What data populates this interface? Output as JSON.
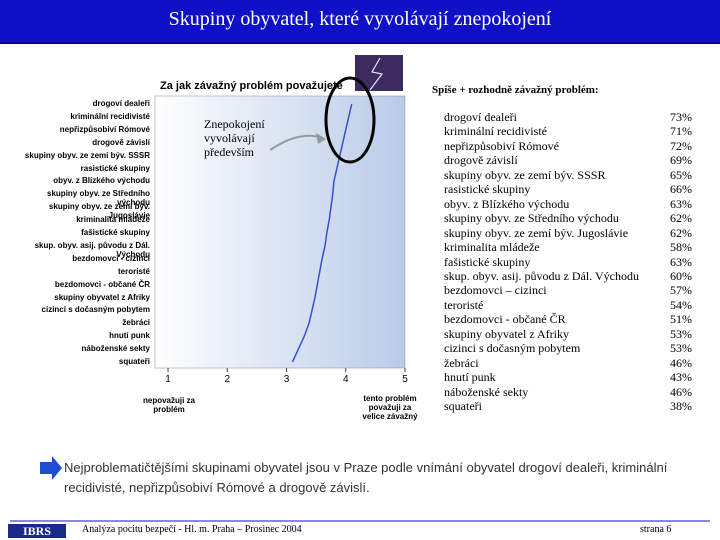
{
  "header": {
    "title": "Skupiny obyvatel, které vyvolávají znepokojení"
  },
  "chart_data": {
    "type": "line",
    "title": "Za jak závažný problém považujete",
    "categories": [
      "drogoví dealeři",
      "kriminální recidivisté",
      "nepřizpůsobiví Rómové",
      "drogově závislí",
      "skupiny obyv. ze zemí býv. SSSR",
      "rasistické skupiny",
      "obyv. z Blízkého východu",
      "skupiny obyv. ze Středního východu",
      "skupiny obyv. ze zemí býv. Jugoslávie",
      "kriminalita mládeže",
      "fašistické skupiny",
      "skup. obyv. asij. původu z Dál. Východu",
      "bezdomovci - cizinci",
      "teroristé",
      "bezdomovci - občané ČR",
      "skupiny obyvatel z Afriky",
      "cizinci s dočasným pobytem",
      "žebráci",
      "hnutí punk",
      "náboženské sekty",
      "squateři"
    ],
    "values": [
      4.1,
      4.05,
      4.0,
      3.95,
      3.9,
      3.85,
      3.8,
      3.78,
      3.75,
      3.72,
      3.68,
      3.65,
      3.6,
      3.56,
      3.52,
      3.48,
      3.43,
      3.38,
      3.3,
      3.2,
      3.1
    ],
    "color": "#3a4fd0",
    "xlim": [
      0.78,
      5
    ],
    "xticks": [
      1,
      2,
      3,
      4,
      5
    ],
    "xlabel_low": "nepovažuji za problém",
    "xlabel_high": "tento problém považuji za velice závažný",
    "annotation": "Znepokojení vyvolávají především"
  },
  "list": {
    "title": "Spíše + rozhodně závažný problém:",
    "items": [
      "drogoví dealeři",
      "kriminální recidivisté",
      "nepřizpůsobiví Rómové",
      "drogově závislí",
      "skupiny obyv. ze zemí býv. SSSR",
      "rasistické skupiny",
      "obyv. z Blízkého východu",
      "skupiny obyv. ze Středního východu",
      "skupiny obyv. ze zemí býv. Jugoslávie",
      "kriminalita mládeže",
      "fašistické skupiny",
      "skup. obyv. asij. původu z Dál. Východu",
      "bezdomovci – cizinci",
      "teroristé",
      "bezdomovci - občané ČR",
      "skupiny obyvatel z Afriky",
      "cizinci s dočasným pobytem",
      "žebráci",
      "hnutí punk",
      "náboženské sekty",
      "squateři"
    ],
    "percents": [
      "73%",
      "71%",
      "72%",
      "69%",
      "65%",
      "66%",
      "63%",
      "62%",
      "62%",
      "58%",
      "63%",
      "60%",
      "57%",
      "54%",
      "51%",
      "53%",
      "53%",
      "46%",
      "43%",
      "46%",
      "38%"
    ]
  },
  "summary": "Nejproblematičtějšími skupinami obyvatel jsou v Praze podle vnímání obyvatel drogoví dealeři, kriminální recidivisté, nepřizpůsobiví Rómové a drogově závislí.",
  "footer": {
    "logo": "IBRS",
    "text": "Analýza pocitu bezpečí - Hl. m. Praha – Prosinec 2004",
    "page": "strana 6"
  }
}
